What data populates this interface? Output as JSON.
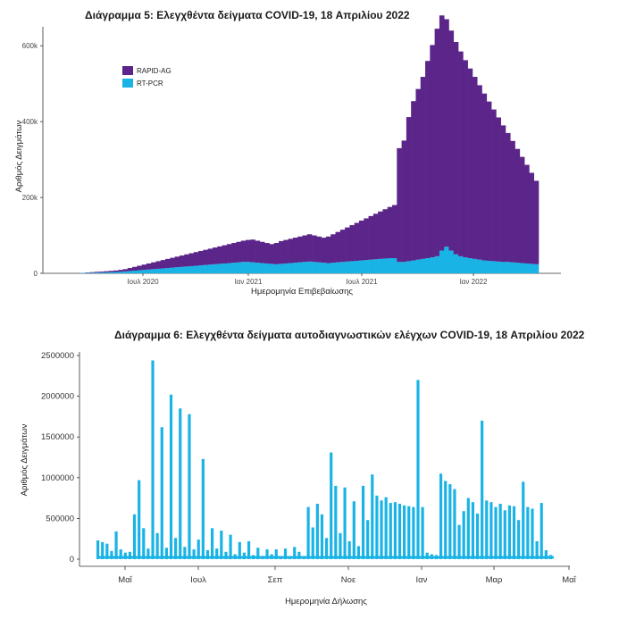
{
  "chart_data": [
    {
      "type": "bar",
      "stacked": true,
      "title": "Διάγραμμα 5: Ελεγχθέντα δείγματα COVID-19, 18 Απριλίου 2022",
      "xlabel": "Ημερομηνία Επιβεβαίωσης",
      "ylabel": "Αριθμός Δειγμάτων",
      "ylim": [
        0,
        650000
      ],
      "yticks": [
        0,
        200000,
        400000,
        600000
      ],
      "ytick_labels": [
        "0",
        "200k",
        "400k",
        "600k"
      ],
      "xtick_labels": [
        "Ιουλ 2020",
        "Ιαν 2021",
        "Ιουλ 2021",
        "Ιαν 2022"
      ],
      "x_range": [
        "2020-03",
        "2022-04-18"
      ],
      "legend_position": "top-left",
      "grid": false,
      "series": [
        {
          "name": "RAPID-AG",
          "color": "#5b2589",
          "values": [
            0,
            0,
            0,
            0,
            1000,
            1500,
            2000,
            2500,
            3000,
            3500,
            4000,
            5000,
            6000,
            8000,
            10000,
            12000,
            14000,
            16000,
            18000,
            20000,
            22000,
            24000,
            26000,
            28000,
            30000,
            32000,
            34000,
            36000,
            38000,
            40000,
            42000,
            44000,
            46000,
            48000,
            50000,
            52000,
            54000,
            56000,
            58000,
            60000,
            58000,
            56000,
            54000,
            52000,
            56000,
            60000,
            62000,
            64000,
            66000,
            68000,
            70000,
            72000,
            70000,
            68000,
            66000,
            70000,
            75000,
            80000,
            85000,
            90000,
            95000,
            100000,
            105000,
            110000,
            115000,
            120000,
            125000,
            130000,
            135000,
            140000,
            300000,
            320000,
            380000,
            420000,
            450000,
            480000,
            520000,
            560000,
            600000,
            620000,
            600000,
            580000,
            560000,
            540000,
            520000,
            500000,
            480000,
            460000,
            440000,
            420000,
            400000,
            380000,
            360000,
            340000,
            320000,
            300000,
            280000,
            260000,
            240000,
            220000
          ]
        },
        {
          "name": "RT-PCR",
          "color": "#19b3e6",
          "values": [
            0,
            0,
            0,
            1000,
            1000,
            1500,
            2000,
            2000,
            2500,
            3000,
            3500,
            4000,
            5000,
            6000,
            7000,
            8000,
            9000,
            10000,
            11000,
            12000,
            13000,
            14000,
            15000,
            16000,
            17000,
            18000,
            19000,
            20000,
            21000,
            22000,
            23000,
            24000,
            25000,
            26000,
            27000,
            28000,
            29000,
            30000,
            30000,
            29000,
            28000,
            27000,
            26000,
            25000,
            24000,
            25000,
            26000,
            27000,
            28000,
            29000,
            30000,
            31000,
            30000,
            29000,
            28000,
            27000,
            28000,
            29000,
            30000,
            31000,
            32000,
            33000,
            34000,
            35000,
            36000,
            37000,
            38000,
            39000,
            40000,
            40000,
            30000,
            30000,
            32000,
            34000,
            36000,
            38000,
            40000,
            42000,
            45000,
            60000,
            70000,
            60000,
            50000,
            45000,
            42000,
            40000,
            38000,
            36000,
            34000,
            33000,
            32000,
            31000,
            30000,
            30000,
            29000,
            28000,
            27000,
            26000,
            25000,
            24000
          ]
        }
      ]
    },
    {
      "type": "bar",
      "title": "Διάγραμμα 6: Ελεγχθέντα δείγματα αυτοδιαγνωστικών ελέγχων COVID-19, 18 Απριλίου 2022",
      "xlabel": "Ημερομηνία Δήλωσης",
      "ylabel": "Αριθμός Δειγμάτων",
      "ylim": [
        0,
        2500000
      ],
      "yticks": [
        0,
        500000,
        1000000,
        1500000,
        2000000,
        2500000
      ],
      "ytick_labels": [
        "0",
        "500000",
        "1000000",
        "1500000",
        "2000000",
        "2500000"
      ],
      "xtick_labels": [
        "Μαΐ",
        "Ιουλ",
        "Σεπ",
        "Νοε",
        "Ιαν",
        "Μαρ",
        "Μαΐ"
      ],
      "x_range": [
        "2021-04",
        "2022-04-18"
      ],
      "grid": false,
      "series": [
        {
          "name": "",
          "color": "#19b3e6",
          "values": [
            230000,
            210000,
            190000,
            100000,
            340000,
            120000,
            80000,
            90000,
            550000,
            970000,
            380000,
            130000,
            2440000,
            320000,
            1620000,
            140000,
            2020000,
            260000,
            1850000,
            150000,
            1780000,
            120000,
            240000,
            1230000,
            110000,
            380000,
            130000,
            350000,
            90000,
            300000,
            60000,
            210000,
            80000,
            220000,
            50000,
            140000,
            40000,
            120000,
            60000,
            120000,
            30000,
            130000,
            20000,
            150000,
            90000,
            20000,
            640000,
            390000,
            680000,
            550000,
            260000,
            1310000,
            900000,
            320000,
            880000,
            220000,
            710000,
            160000,
            900000,
            480000,
            1040000,
            780000,
            720000,
            760000,
            690000,
            700000,
            680000,
            660000,
            650000,
            640000,
            2200000,
            640000,
            80000,
            60000,
            50000,
            1050000,
            960000,
            920000,
            860000,
            420000,
            590000,
            750000,
            700000,
            560000,
            1700000,
            720000,
            700000,
            640000,
            680000,
            600000,
            660000,
            650000,
            480000,
            950000,
            640000,
            620000,
            220000,
            690000,
            110000,
            50000
          ]
        }
      ]
    }
  ]
}
